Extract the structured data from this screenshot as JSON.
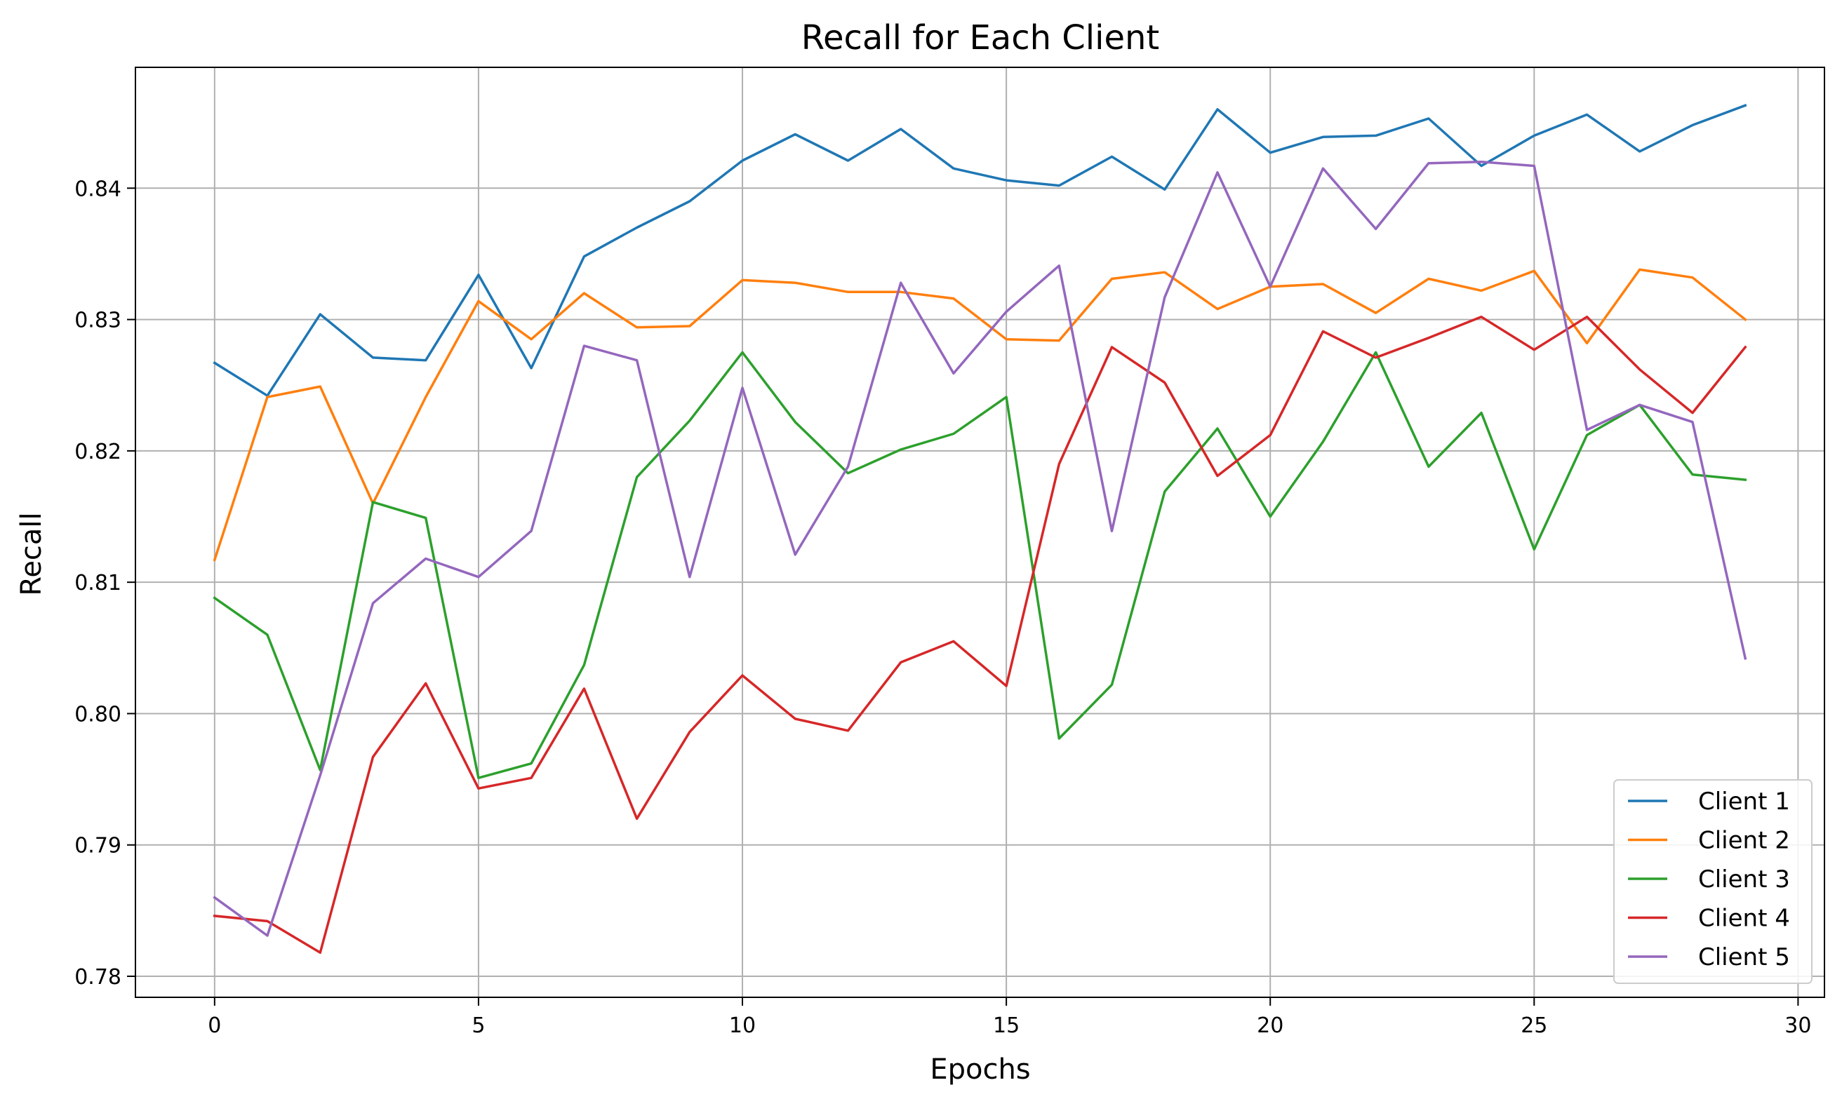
{
  "chart_data": {
    "type": "line",
    "title": "Recall for Each Client",
    "xlabel": "Epochs",
    "ylabel": "Recall",
    "xlim": [
      -1.5,
      30.5
    ],
    "ylim": [
      0.7784,
      0.8492
    ],
    "xticks": [
      0,
      5,
      10,
      15,
      20,
      25,
      30
    ],
    "yticks": [
      0.78,
      0.79,
      0.8,
      0.81,
      0.82,
      0.83,
      0.84
    ],
    "ytick_labels": [
      "0.78",
      "0.79",
      "0.80",
      "0.81",
      "0.82",
      "0.83",
      "0.84"
    ],
    "grid": true,
    "legend_position": "lower-right",
    "x": [
      0,
      1,
      2,
      3,
      4,
      5,
      6,
      7,
      8,
      9,
      10,
      11,
      12,
      13,
      14,
      15,
      16,
      17,
      18,
      19,
      20,
      21,
      22,
      23,
      24,
      25,
      26,
      27,
      28,
      29
    ],
    "series": [
      {
        "name": "Client 1",
        "color": "#1f77b4",
        "values": [
          0.8267,
          0.8242,
          0.8304,
          0.8271,
          0.8269,
          0.8334,
          0.8263,
          0.8348,
          0.837,
          0.839,
          0.8421,
          0.8441,
          0.8421,
          0.8445,
          0.8415,
          0.8406,
          0.8402,
          0.8424,
          0.8399,
          0.846,
          0.8427,
          0.8439,
          0.844,
          0.8453,
          0.8417,
          0.844,
          0.8456,
          0.8428,
          0.8448,
          0.8463
        ]
      },
      {
        "name": "Client 2",
        "color": "#ff7f0e",
        "values": [
          0.8117,
          0.8241,
          0.8249,
          0.816,
          0.8241,
          0.8314,
          0.8285,
          0.832,
          0.8294,
          0.8295,
          0.833,
          0.8328,
          0.8321,
          0.8321,
          0.8316,
          0.8285,
          0.8284,
          0.8331,
          0.8336,
          0.8308,
          0.8325,
          0.8327,
          0.8305,
          0.8331,
          0.8322,
          0.8337,
          0.8282,
          0.8338,
          0.8332,
          0.83
        ]
      },
      {
        "name": "Client 3",
        "color": "#2ca02c",
        "values": [
          0.8088,
          0.806,
          0.7957,
          0.8161,
          0.8149,
          0.7951,
          0.7962,
          0.8037,
          0.818,
          0.8223,
          0.8275,
          0.8222,
          0.8183,
          0.8201,
          0.8213,
          0.8241,
          0.7981,
          0.8022,
          0.8169,
          0.8217,
          0.815,
          0.8207,
          0.8275,
          0.8188,
          0.8229,
          0.8125,
          0.8212,
          0.8235,
          0.8182,
          0.8178
        ]
      },
      {
        "name": "Client 4",
        "color": "#d62728",
        "values": [
          0.7846,
          0.7842,
          0.7818,
          0.7967,
          0.8023,
          0.7943,
          0.7951,
          0.8019,
          0.792,
          0.7986,
          0.8029,
          0.7996,
          0.7987,
          0.8039,
          0.8055,
          0.8021,
          0.819,
          0.8279,
          0.8252,
          0.8181,
          0.8212,
          0.8291,
          0.8271,
          0.8286,
          0.8302,
          0.8277,
          0.8302,
          0.8262,
          0.8229,
          0.8279
        ]
      },
      {
        "name": "Client 5",
        "color": "#9467bd",
        "values": [
          0.786,
          0.7831,
          0.7953,
          0.8084,
          0.8118,
          0.8104,
          0.8139,
          0.828,
          0.8269,
          0.8104,
          0.8248,
          0.8121,
          0.8188,
          0.8328,
          0.8259,
          0.8306,
          0.8341,
          0.8139,
          0.8317,
          0.8412,
          0.8325,
          0.8415,
          0.8369,
          0.8419,
          0.842,
          0.8417,
          0.8216,
          0.8235,
          0.8222,
          0.8042
        ]
      }
    ]
  }
}
